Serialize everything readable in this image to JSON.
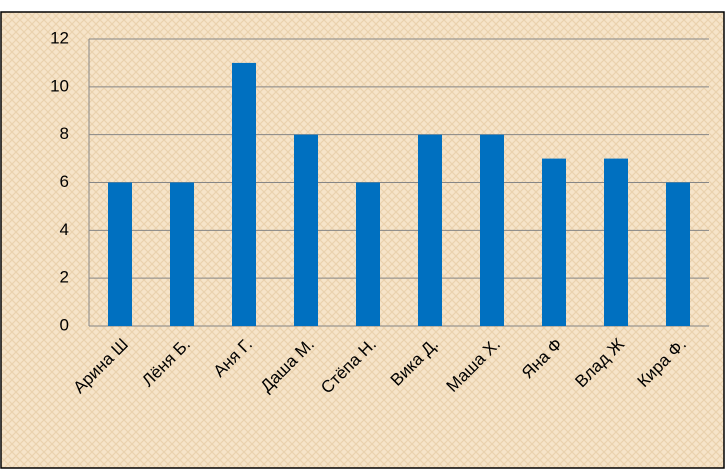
{
  "chart_data": {
    "type": "bar",
    "categories": [
      "Арина Ш",
      "Лёня Б.",
      "Аня Г.",
      "Даша М.",
      "Стёпа Н.",
      "Вика Д.",
      "Маша Х.",
      "Яна Ф",
      "Влад Ж",
      "Кира Ф."
    ],
    "values": [
      6,
      6,
      11,
      8,
      6,
      8,
      8,
      7,
      7,
      6
    ],
    "color": "#0070c0",
    "ylim": [
      0,
      12
    ],
    "yticks": [
      0,
      2,
      4,
      6,
      8,
      10,
      12
    ],
    "grid": true
  }
}
